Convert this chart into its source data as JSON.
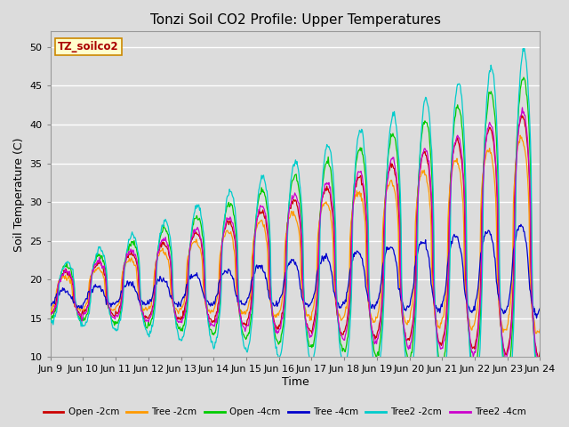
{
  "title": "Tonzi Soil CO2 Profile: Upper Temperatures",
  "xlabel": "Time",
  "ylabel": "Soil Temperature (C)",
  "ylim": [
    10,
    52
  ],
  "yticks": [
    10,
    15,
    20,
    25,
    30,
    35,
    40,
    45,
    50
  ],
  "background_color": "#dcdcdc",
  "grid_color": "#ffffff",
  "title_fontsize": 11,
  "label_fontsize": 9,
  "tick_fontsize": 8,
  "legend_label": "TZ_soilco2",
  "series": [
    {
      "label": "Open -2cm",
      "color": "#cc0000"
    },
    {
      "label": "Tree -2cm",
      "color": "#ff9900"
    },
    {
      "label": "Open -4cm",
      "color": "#00cc00"
    },
    {
      "label": "Tree -4cm",
      "color": "#0000cc"
    },
    {
      "label": "Tree2 -2cm",
      "color": "#00cccc"
    },
    {
      "label": "Tree2 -4cm",
      "color": "#cc00cc"
    }
  ],
  "xtick_labels": [
    "Jun 9",
    "Jun 10",
    "Jun 11",
    "Jun 12",
    "Jun 13",
    "Jun 14",
    "Jun 15",
    "Jun 16",
    "Jun 17",
    "Jun 18",
    "Jun 19",
    "Jun 20",
    "Jun 21",
    "Jun 22",
    "Jun 23",
    "Jun 24"
  ],
  "n_days": 15,
  "pts_per_day": 48
}
